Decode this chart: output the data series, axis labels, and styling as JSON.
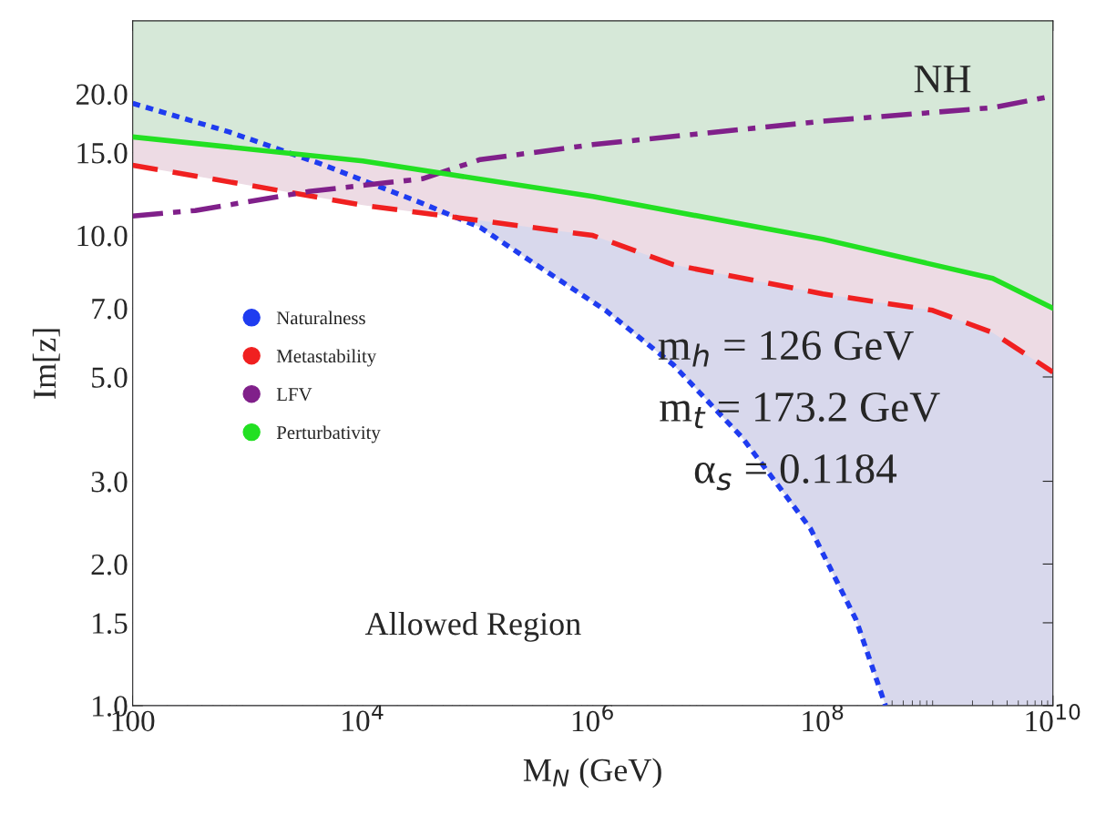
{
  "chart_data": {
    "type": "line",
    "xlabel": "M$_{N}$ (GeV)",
    "ylabel": "Im[z]",
    "log": "xy",
    "xlim": [
      100,
      10000000000
    ],
    "xticks": [
      100,
      {
        "value": 10000,
        "label": "10$^{4}$"
      },
      {
        "value": 1000000,
        "label": "10$^{6}$"
      },
      {
        "value": 100000000,
        "label": "10$^{8}$"
      },
      {
        "value": 10000000000,
        "label": "10$^{10}$"
      }
    ],
    "ylim": [
      1,
      28.6
    ],
    "yticks": [
      {
        "value": 1,
        "label": "1.0"
      },
      1.5,
      {
        "value": 2,
        "label": "2.0"
      },
      {
        "value": 3,
        "label": "3.0"
      },
      {
        "value": 5,
        "label": "5.0"
      },
      {
        "value": 7,
        "label": "7.0"
      },
      {
        "value": 10,
        "label": "10.0"
      },
      {
        "value": 15,
        "label": "15.0"
      },
      {
        "value": 20,
        "label": "20.0"
      }
    ],
    "legend": "left",
    "marker": "none",
    "grid": false,
    "series": [
      {
        "name": "Naturalness",
        "color": "#1f3cf0",
        "line_style": "dotted",
        "x": [
          100,
          690,
          4300,
          33000,
          105000,
          320000,
          1290000,
          5000000,
          20000000,
          78000000,
          195000000,
          350000000
        ],
        "values": [
          19.1,
          16.6,
          14.2,
          11.7,
          10.4,
          8.67,
          6.93,
          5.31,
          3.71,
          2.38,
          1.52,
          1.0
        ]
      },
      {
        "name": "Metastability",
        "color": "#f02020",
        "line_style": "dashed",
        "x": [
          100,
          1000,
          10000,
          1000000,
          5000000,
          100000000,
          900000000,
          3000000000,
          10000000000
        ],
        "values": [
          14.1,
          12.8,
          11.6,
          10.0,
          8.67,
          7.51,
          6.93,
          6.21,
          5.12
        ]
      },
      {
        "name": "LFV",
        "color": "#80208a",
        "line_style": "dashdot",
        "x": [
          100,
          350,
          3400,
          33000,
          105000,
          1000000,
          100000000,
          3000000000,
          10000000000
        ],
        "values": [
          11.0,
          11.3,
          12.4,
          13.2,
          14.5,
          15.6,
          17.5,
          18.7,
          19.8
        ]
      },
      {
        "name": "Perturbativity",
        "color": "#22e022",
        "line_style": "solid",
        "x": [
          100,
          10000,
          1000000,
          100000000,
          3000000000,
          10000000000
        ],
        "values": [
          16.2,
          14.4,
          12.1,
          9.82,
          8.1,
          7.0
        ]
      }
    ],
    "annotations": [
      "NH",
      "m$_{h}$ = 126 GeV",
      "m$_{t}$ = 173.2 GeV",
      "α$_{s}$ = 0.1184",
      "Allowed Region"
    ]
  }
}
